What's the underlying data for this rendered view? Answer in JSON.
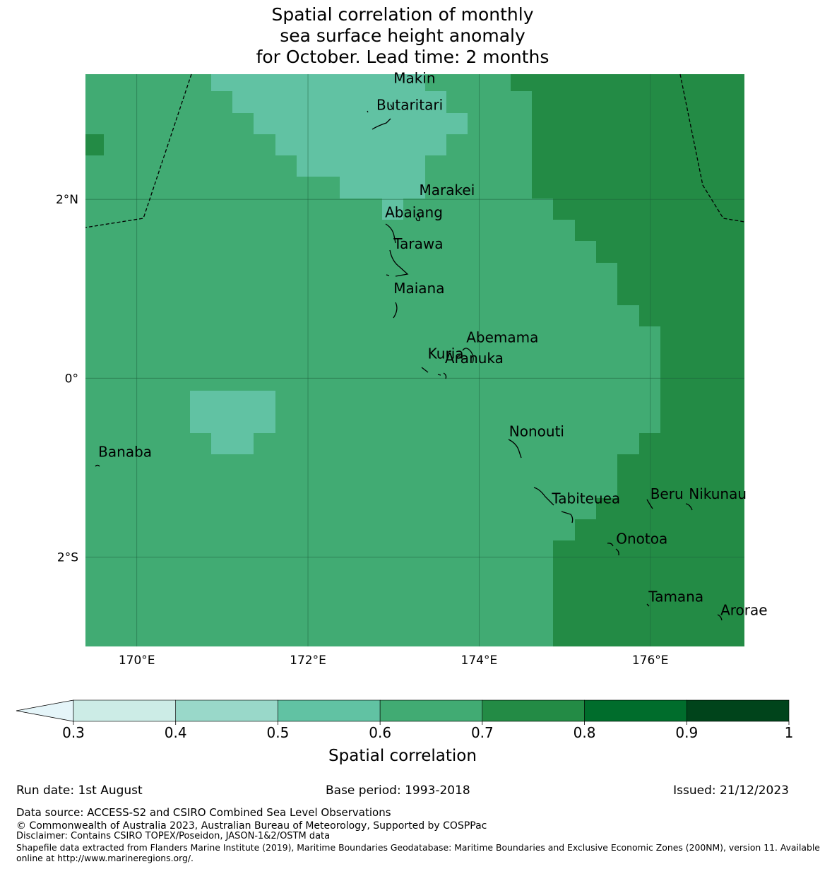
{
  "title": {
    "line1": "Spatial correlation of monthly",
    "line2": "sea surface height anomaly",
    "line3": "for October. Lead time: 2 months"
  },
  "map": {
    "lon_range": [
      169.4,
      177.1
    ],
    "lat_range": [
      -3.0,
      3.4
    ],
    "lon_ticks": [
      {
        "value": 170,
        "label": "170°E"
      },
      {
        "value": 172,
        "label": "172°E"
      },
      {
        "value": 174,
        "label": "174°E"
      },
      {
        "value": 176,
        "label": "176°E"
      }
    ],
    "lat_ticks": [
      {
        "value": 2,
        "label": "2°N"
      },
      {
        "value": 0,
        "label": "0°"
      },
      {
        "value": -2,
        "label": "2°S"
      }
    ],
    "places": [
      {
        "name": "Makin",
        "lon": 173.0,
        "lat": 3.3
      },
      {
        "name": "Butaritari",
        "lon": 172.8,
        "lat": 3.0
      },
      {
        "name": "Marakei",
        "lon": 173.3,
        "lat": 2.05
      },
      {
        "name": "Abaiang",
        "lon": 172.9,
        "lat": 1.8
      },
      {
        "name": "Tarawa",
        "lon": 173.0,
        "lat": 1.45
      },
      {
        "name": "Maiana",
        "lon": 173.0,
        "lat": 0.95
      },
      {
        "name": "Abemama",
        "lon": 173.85,
        "lat": 0.4
      },
      {
        "name": "Kuria",
        "lon": 173.4,
        "lat": 0.22
      },
      {
        "name": "Aranuka",
        "lon": 173.6,
        "lat": 0.17
      },
      {
        "name": "Nonouti",
        "lon": 174.35,
        "lat": -0.65
      },
      {
        "name": "Banaba",
        "lon": 169.55,
        "lat": -0.88
      },
      {
        "name": "Tabiteuea",
        "lon": 174.85,
        "lat": -1.4
      },
      {
        "name": "Beru",
        "lon": 176.0,
        "lat": -1.35
      },
      {
        "name": "Nikunau",
        "lon": 176.45,
        "lat": -1.35
      },
      {
        "name": "Onotoa",
        "lon": 175.6,
        "lat": -1.85
      },
      {
        "name": "Tamana",
        "lon": 175.98,
        "lat": -2.5
      },
      {
        "name": "Arorae",
        "lon": 176.82,
        "lat": -2.65
      }
    ],
    "colors": {
      "c05": "#61c2a3",
      "c06": "#41ab73",
      "c07": "#238b45",
      "grid": "#1b5e3a"
    }
  },
  "colorbar": {
    "label": "Spatial correlation",
    "ticks": [
      "0.3",
      "0.4",
      "0.5",
      "0.6",
      "0.7",
      "0.8",
      "0.9",
      "1"
    ],
    "bins": [
      {
        "from": 0.3,
        "to": 0.4,
        "color": "#ccece6"
      },
      {
        "from": 0.4,
        "to": 0.5,
        "color": "#99d8c9"
      },
      {
        "from": 0.5,
        "to": 0.6,
        "color": "#61c2a3"
      },
      {
        "from": 0.6,
        "to": 0.7,
        "color": "#41ab73"
      },
      {
        "from": 0.7,
        "to": 0.8,
        "color": "#238b45"
      },
      {
        "from": 0.8,
        "to": 0.9,
        "color": "#006d2c"
      },
      {
        "from": 0.9,
        "to": 1.0,
        "color": "#00441b"
      }
    ],
    "extend_below_color": "#e5f5f9"
  },
  "footer": {
    "run_date": "Run date: 1st August",
    "base_period": "Base period: 1993-2018",
    "issued": "Issued: 21/12/2023",
    "data_source": "Data source: ACCESS-S2 and CSIRO Combined Sea Level Observations",
    "copyright": "© Commonwealth of Australia 2023, Australian Bureau of Meteorology, Supported by COSPPac",
    "disclaimer": "Disclaimer: Contains CSIRO TOPEX/Poseidon, JASON-1&2/OSTM data",
    "shapefile1": "Shapefile data extracted from Flanders Marine Institute (2019), Maritime Boundaries Geodatabase: Maritime Boundaries and Exclusive Economic Zones (200NM), version 11. Available",
    "shapefile2": "online at http://www.marineregions.org/."
  }
}
